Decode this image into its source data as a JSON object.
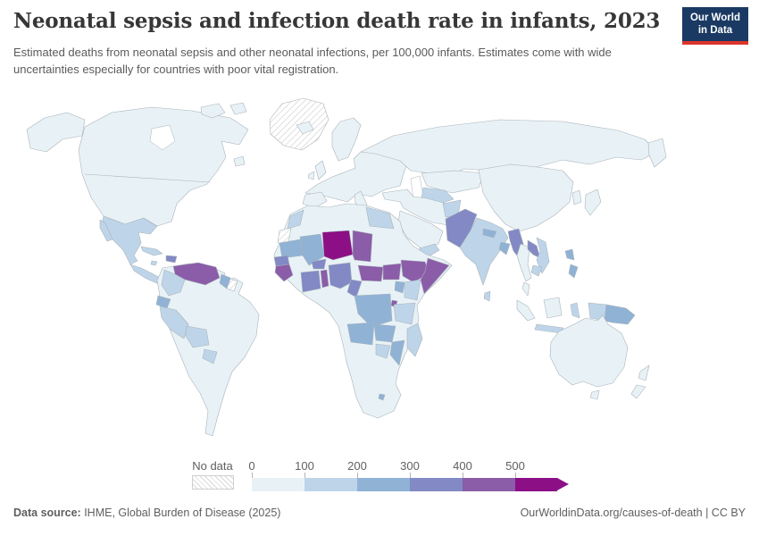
{
  "header": {
    "title": "Neonatal sepsis and infection death rate in infants, 2023",
    "subtitle": "Estimated deaths from neonatal sepsis and other neonatal infections, per 100,000 infants. Estimates come with wide uncertainties especially for countries with poor vital registration.",
    "logo": {
      "line1": "Our World",
      "line2": "in Data",
      "bg_color": "#1a3a63",
      "accent_color": "#dc352b"
    }
  },
  "footer": {
    "datasource_label": "Data source:",
    "datasource_value": " IHME, Global Burden of Disease (2025)",
    "attribution": "OurWorldinData.org/causes-of-death | CC BY"
  },
  "chart_data": {
    "type": "choropleth",
    "title": "Neonatal sepsis and infection death rate in infants, 2023",
    "unit": "deaths per 100,000 infants",
    "year": 2023,
    "projection": "world map",
    "legend": {
      "position": "bottom",
      "no_data_label": "No data",
      "tick_labels": [
        "0",
        "100",
        "200",
        "300",
        "400",
        "500"
      ],
      "bin_ranges": [
        "0-100",
        "100-200",
        "200-300",
        "300-400",
        "400-500",
        "500+"
      ],
      "bin_colors": [
        "#e8f2f6",
        "#bed5e9",
        "#90b2d5",
        "#8289c4",
        "#8b5ca8",
        "#8c0f86"
      ]
    },
    "note": "Country bins estimated from map shading; bin is an index into legend.bin_colors / legend.bin_ranges.",
    "regions": [
      {
        "id": "north-america",
        "name": "United States & Canada",
        "bin": 0
      },
      {
        "id": "greenland",
        "name": "Greenland",
        "no_data": true
      },
      {
        "id": "mexico",
        "name": "Mexico",
        "bin": 1
      },
      {
        "id": "central-america",
        "name": "Central America",
        "bin": 1
      },
      {
        "id": "cuba",
        "name": "Cuba",
        "bin": 1
      },
      {
        "id": "jamaica",
        "name": "Jamaica",
        "bin": 1
      },
      {
        "id": "haiti",
        "name": "Haiti & Dominican Republic",
        "bin": 3
      },
      {
        "id": "south-america",
        "name": "Brazil, Argentina, Chile & Uruguay",
        "bin": 0
      },
      {
        "id": "venezuela",
        "name": "Venezuela",
        "bin": 4
      },
      {
        "id": "colombia",
        "name": "Colombia",
        "bin": 1
      },
      {
        "id": "guyana",
        "name": "Guyana",
        "bin": 2
      },
      {
        "id": "suriname",
        "name": "Suriname",
        "no_data": true
      },
      {
        "id": "ecuador",
        "name": "Ecuador",
        "bin": 2
      },
      {
        "id": "peru",
        "name": "Peru",
        "bin": 1
      },
      {
        "id": "bolivia",
        "name": "Bolivia",
        "bin": 1
      },
      {
        "id": "paraguay",
        "name": "Paraguay",
        "bin": 1
      },
      {
        "id": "europe",
        "name": "Europe (most countries)",
        "bin": 0
      },
      {
        "id": "russia",
        "name": "Russia",
        "bin": 0
      },
      {
        "id": "kazakhstan",
        "name": "Kazakhstan",
        "bin": 0
      },
      {
        "id": "central-asia-south",
        "name": "Uzbekistan & Turkmenistan",
        "bin": 1
      },
      {
        "id": "middle-east",
        "name": "Turkey, Iran & Iraq",
        "bin": 0
      },
      {
        "id": "saudi-arabia",
        "name": "Saudi Arabia",
        "bin": 0
      },
      {
        "id": "yemen",
        "name": "Yemen",
        "bin": 1
      },
      {
        "id": "north-africa",
        "name": "Algeria, Libya, Tunisia, Sudan & Southern Africa (lightest band)",
        "bin": 0
      },
      {
        "id": "western-sahara",
        "name": "Western Sahara",
        "no_data": true
      },
      {
        "id": "morocco",
        "name": "Morocco",
        "bin": 1
      },
      {
        "id": "egypt",
        "name": "Egypt",
        "bin": 1
      },
      {
        "id": "mauritania",
        "name": "Mauritania",
        "bin": 2
      },
      {
        "id": "mali",
        "name": "Mali",
        "bin": 2
      },
      {
        "id": "niger",
        "name": "Niger",
        "bin": 5
      },
      {
        "id": "chad",
        "name": "Chad",
        "bin": 4
      },
      {
        "id": "senegal",
        "name": "Senegal",
        "bin": 3
      },
      {
        "id": "guinea",
        "name": "Guinea & Sierra Leone",
        "bin": 4
      },
      {
        "id": "burkina-faso",
        "name": "Burkina Faso",
        "bin": 3
      },
      {
        "id": "cote-divoire-ghana",
        "name": "Cote d'Ivoire & Ghana",
        "bin": 3
      },
      {
        "id": "benin-togo",
        "name": "Benin & Togo",
        "bin": 4
      },
      {
        "id": "nigeria",
        "name": "Nigeria",
        "bin": 3
      },
      {
        "id": "cameroon",
        "name": "Cameroon",
        "bin": 3
      },
      {
        "id": "central-african-republic",
        "name": "Central African Republic",
        "bin": 4
      },
      {
        "id": "south-sudan",
        "name": "South Sudan",
        "bin": 4
      },
      {
        "id": "ethiopia",
        "name": "Ethiopia",
        "bin": 4
      },
      {
        "id": "somalia",
        "name": "Somalia",
        "bin": 4
      },
      {
        "id": "kenya",
        "name": "Kenya",
        "bin": 1
      },
      {
        "id": "uganda",
        "name": "Uganda",
        "bin": 2
      },
      {
        "id": "rwanda-burundi",
        "name": "Rwanda & Burundi",
        "bin": 4
      },
      {
        "id": "dr-congo",
        "name": "Democratic Republic of Congo",
        "bin": 2
      },
      {
        "id": "tanzania",
        "name": "Tanzania",
        "bin": 1
      },
      {
        "id": "angola",
        "name": "Angola",
        "bin": 2
      },
      {
        "id": "zambia",
        "name": "Zambia",
        "bin": 2
      },
      {
        "id": "mozambique",
        "name": "Mozambique & Malawi",
        "bin": 2
      },
      {
        "id": "zimbabwe",
        "name": "Zimbabwe",
        "bin": 1
      },
      {
        "id": "lesotho",
        "name": "Lesotho",
        "bin": 2
      },
      {
        "id": "madagascar",
        "name": "Madagascar",
        "bin": 1
      },
      {
        "id": "afghanistan",
        "name": "Afghanistan",
        "bin": 1
      },
      {
        "id": "pakistan",
        "name": "Pakistan",
        "bin": 3
      },
      {
        "id": "india",
        "name": "India",
        "bin": 1
      },
      {
        "id": "nepal",
        "name": "Nepal",
        "bin": 2
      },
      {
        "id": "bangladesh",
        "name": "Bangladesh",
        "bin": 2
      },
      {
        "id": "sri-lanka",
        "name": "Sri Lanka",
        "bin": 1
      },
      {
        "id": "china",
        "name": "China & Mongolia",
        "bin": 0
      },
      {
        "id": "korea",
        "name": "Korea",
        "bin": 0
      },
      {
        "id": "japan",
        "name": "Japan",
        "bin": 0
      },
      {
        "id": "myanmar",
        "name": "Myanmar",
        "bin": 3
      },
      {
        "id": "thailand",
        "name": "Thailand",
        "bin": 0
      },
      {
        "id": "laos",
        "name": "Laos",
        "bin": 3
      },
      {
        "id": "vietnam",
        "name": "Vietnam",
        "bin": 1
      },
      {
        "id": "cambodia",
        "name": "Cambodia",
        "bin": 1
      },
      {
        "id": "malaysia",
        "name": "Malaysia",
        "bin": 0
      },
      {
        "id": "philippines",
        "name": "Philippines",
        "bin": 2
      },
      {
        "id": "indonesia",
        "name": "Indonesia (Sumatra, Borneo)",
        "bin": 0
      },
      {
        "id": "sulawesi",
        "name": "Indonesia (Sulawesi)",
        "bin": 1
      },
      {
        "id": "java",
        "name": "Indonesia (Java)",
        "bin": 1
      },
      {
        "id": "west-papua",
        "name": "Indonesia (Papua)",
        "bin": 1
      },
      {
        "id": "papua-new-guinea",
        "name": "Papua New Guinea",
        "bin": 2
      },
      {
        "id": "australia",
        "name": "Australia",
        "bin": 0
      },
      {
        "id": "new-zealand",
        "name": "New Zealand",
        "bin": 0
      }
    ]
  }
}
